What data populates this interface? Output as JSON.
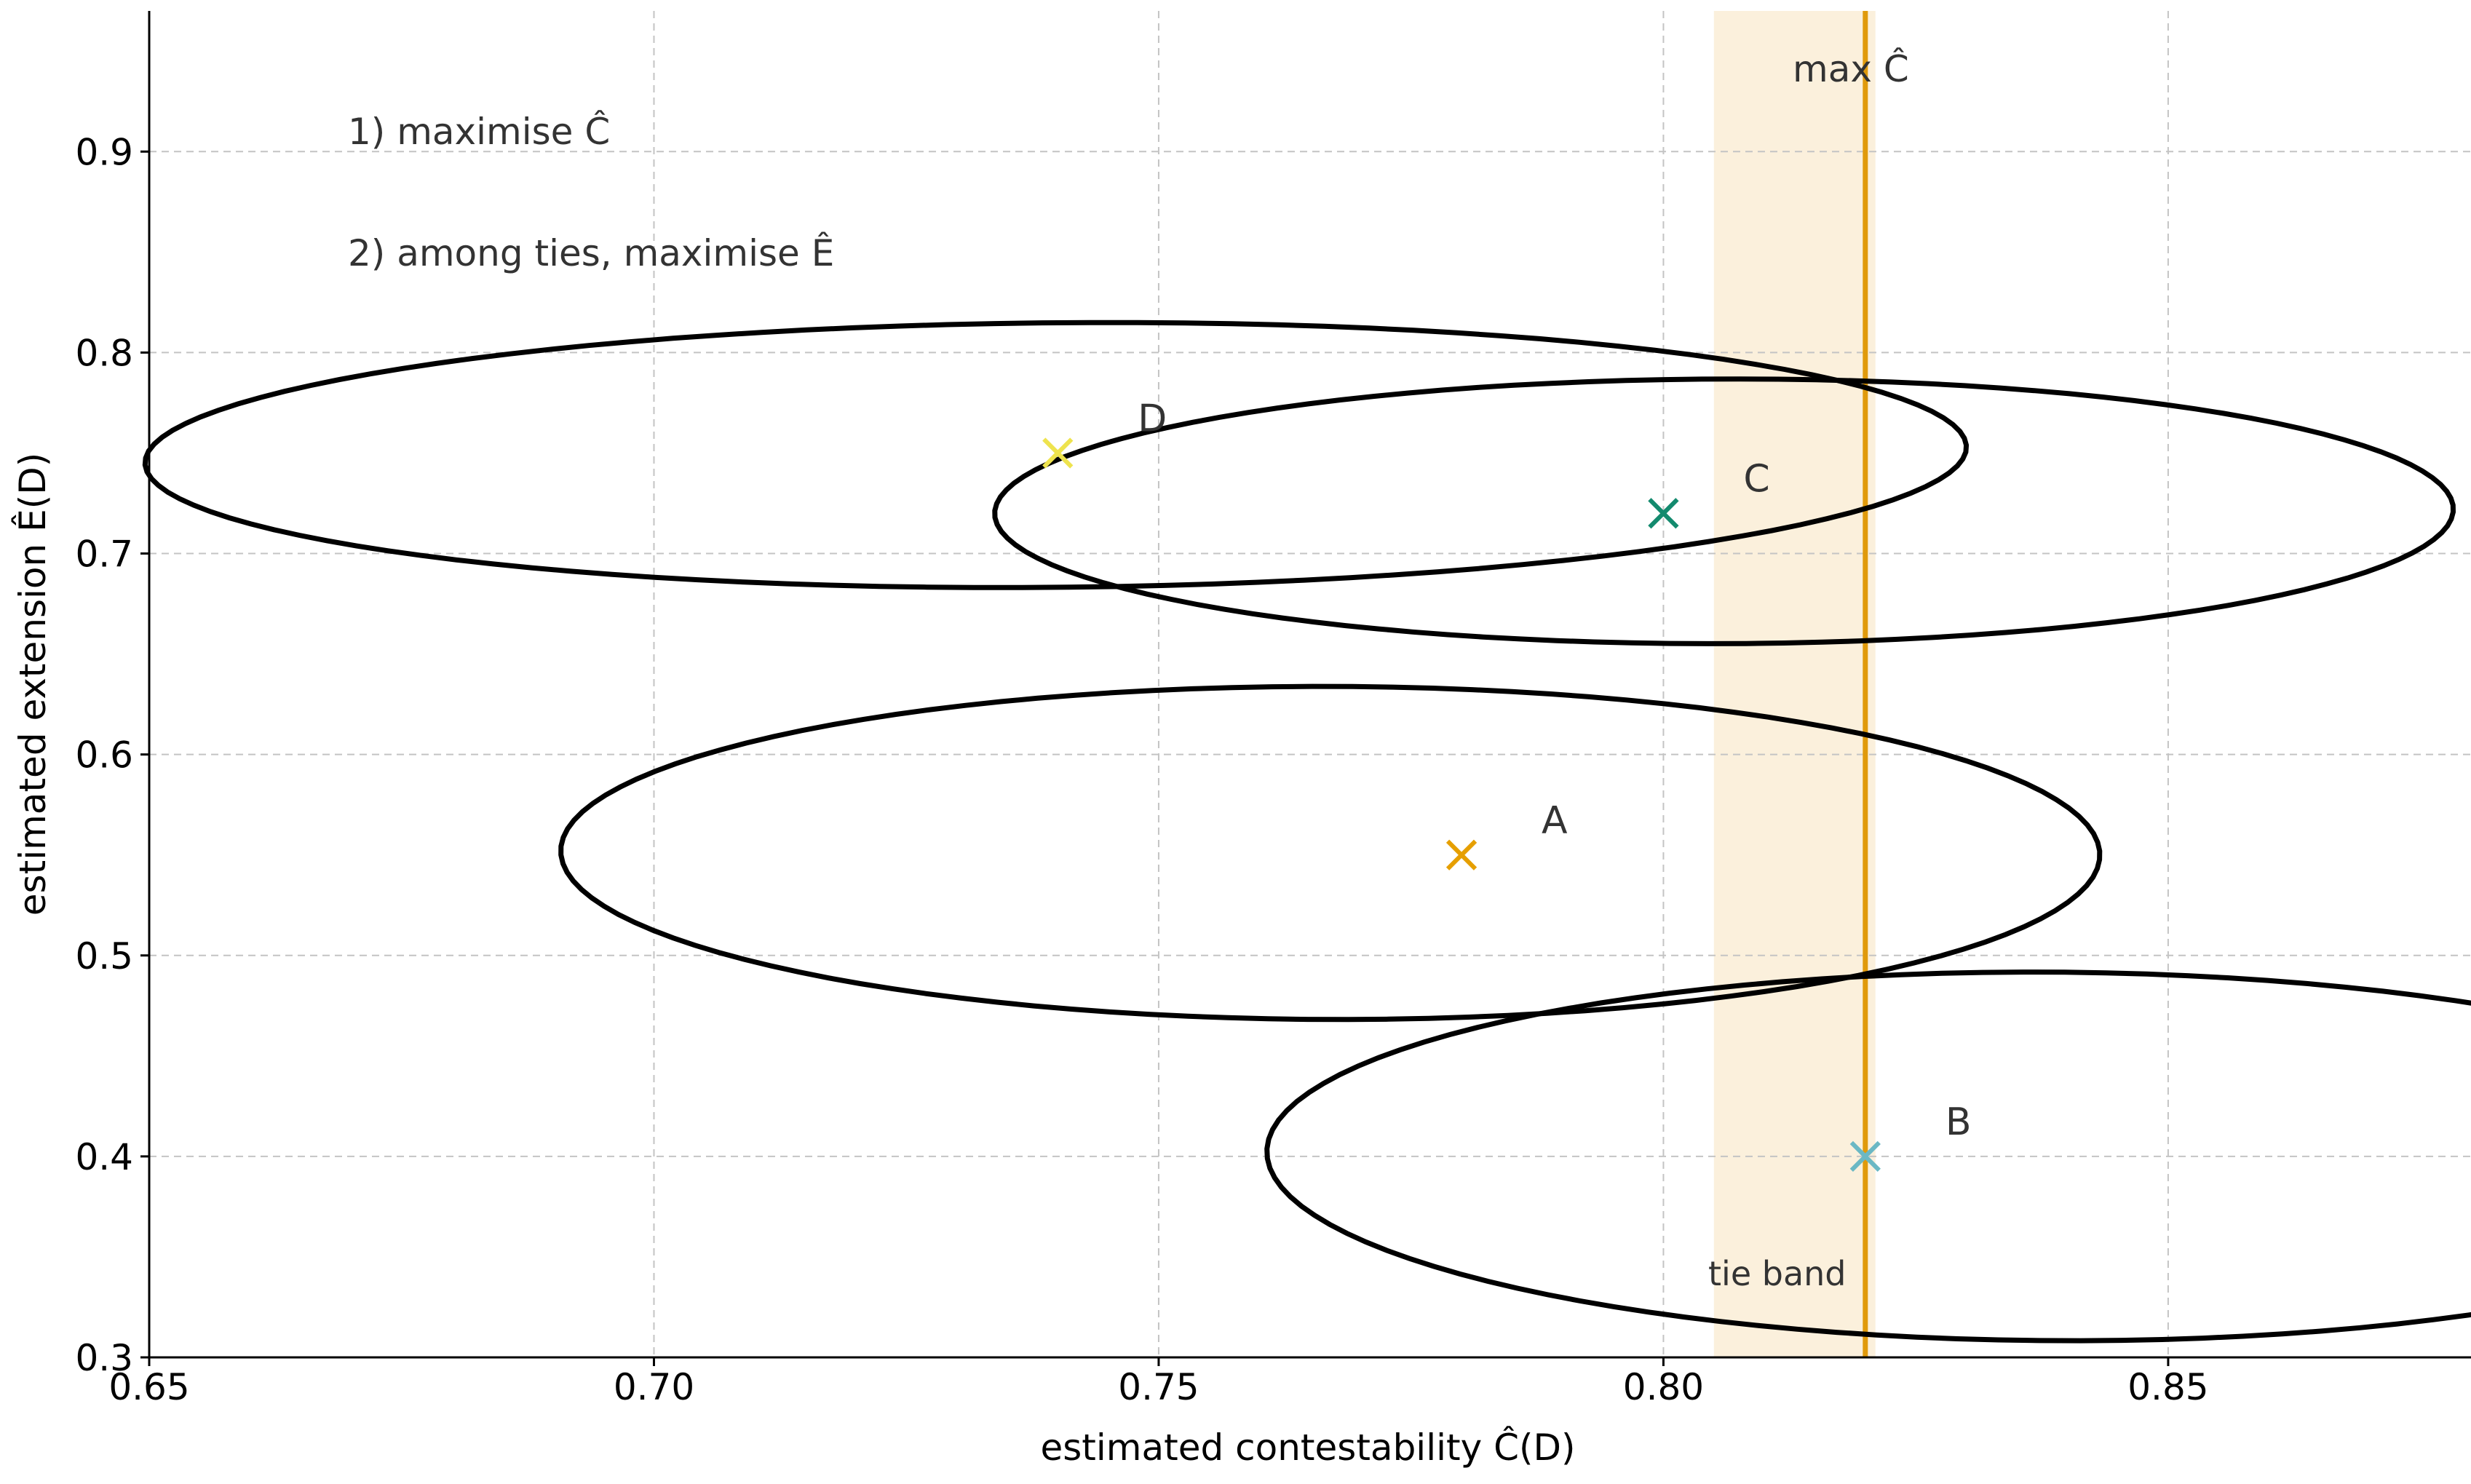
{
  "chart_data": {
    "type": "scatter",
    "title": "",
    "xlabel": "estimated contestability  Ĉ(D)",
    "ylabel": "estimated extension  Ê(D)",
    "xlim": [
      0.65,
      0.88
    ],
    "ylim": [
      0.3,
      0.97
    ],
    "xticks": [
      0.65,
      0.7,
      0.75,
      0.8,
      0.85
    ],
    "xtick_labels": [
      "0.65",
      "0.70",
      "0.75",
      "0.80",
      "0.85"
    ],
    "yticks": [
      0.3,
      0.4,
      0.5,
      0.6,
      0.7,
      0.8,
      0.9
    ],
    "ytick_labels": [
      "0.3",
      "0.4",
      "0.5",
      "0.6",
      "0.7",
      "0.8",
      "0.9"
    ],
    "grid": true,
    "points": [
      {
        "label": "A",
        "x": 0.78,
        "y": 0.55,
        "color": "#E69F00"
      },
      {
        "label": "B",
        "x": 0.82,
        "y": 0.4,
        "color": "#6BB8C4"
      },
      {
        "label": "C",
        "x": 0.8,
        "y": 0.72,
        "color": "#138A6E"
      },
      {
        "label": "D",
        "x": 0.74,
        "y": 0.75,
        "color": "#EEE34E"
      }
    ],
    "ellipses": [
      {
        "cx": 0.767,
        "cy": 0.551,
        "rx": 0.0762,
        "ry": 0.0829,
        "angle_deg": 4.0
      },
      {
        "cx": 0.8385,
        "cy": 0.4,
        "rx": 0.0777,
        "ry": 0.0918,
        "angle_deg": 4.3
      },
      {
        "cx": 0.806,
        "cy": 0.721,
        "rx": 0.0723,
        "ry": 0.0658,
        "angle_deg": 5.2
      },
      {
        "cx": 0.7398,
        "cy": 0.749,
        "rx": 0.0904,
        "ry": 0.0657,
        "angle_deg": 5.3
      }
    ],
    "max_line": {
      "x": 0.82,
      "label": "max Ĉ",
      "color": "#E09A0C"
    },
    "tie_band": {
      "x0": 0.805,
      "x1": 0.821,
      "label": "tie band",
      "color": "#FBF0DC"
    },
    "annotations": [
      "1) maximise Ĉ",
      "2) among ties, maximise Ê"
    ]
  }
}
